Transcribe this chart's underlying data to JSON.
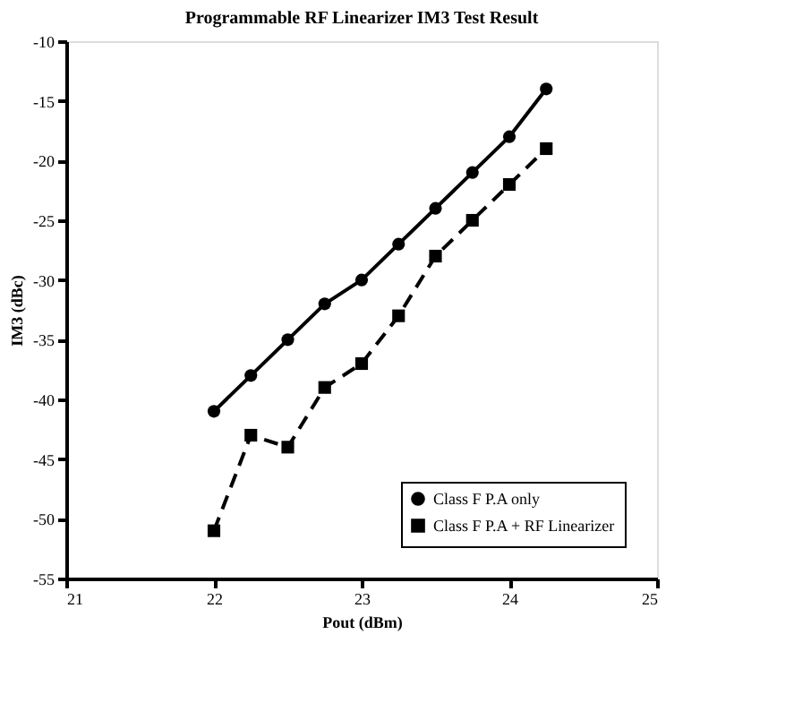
{
  "chart_data": {
    "type": "line",
    "title": "Programmable RF Linearizer IM3 Test Result",
    "xlabel": "Pout (dBm)",
    "ylabel": "IM3 (dBc)",
    "x": [
      22,
      22.25,
      22.5,
      22.75,
      23,
      23.25,
      23.5,
      23.75,
      24,
      24.25
    ],
    "series": [
      {
        "name": "Class F P.A only",
        "color": "#000000",
        "marker": "circle",
        "line_style": "solid",
        "values": [
          -41,
          -38,
          -35,
          -32,
          -30,
          -27,
          -24,
          -21,
          -18,
          -14
        ]
      },
      {
        "name": "Class F P.A + RF Linearizer",
        "color": "#000000",
        "marker": "square",
        "line_style": "dashed",
        "values": [
          -51,
          -43,
          -44,
          -39,
          -37,
          -33,
          -28,
          -25,
          -22,
          -19
        ]
      }
    ],
    "xlim": [
      21,
      25
    ],
    "xticks": [
      21,
      22,
      23,
      24,
      25
    ],
    "ylim": [
      -55,
      -10
    ],
    "yticks": [
      -55,
      -50,
      -45,
      -40,
      -35,
      -30,
      -25,
      -20,
      -15,
      -10
    ],
    "grid": false,
    "legend": "bottom right"
  }
}
